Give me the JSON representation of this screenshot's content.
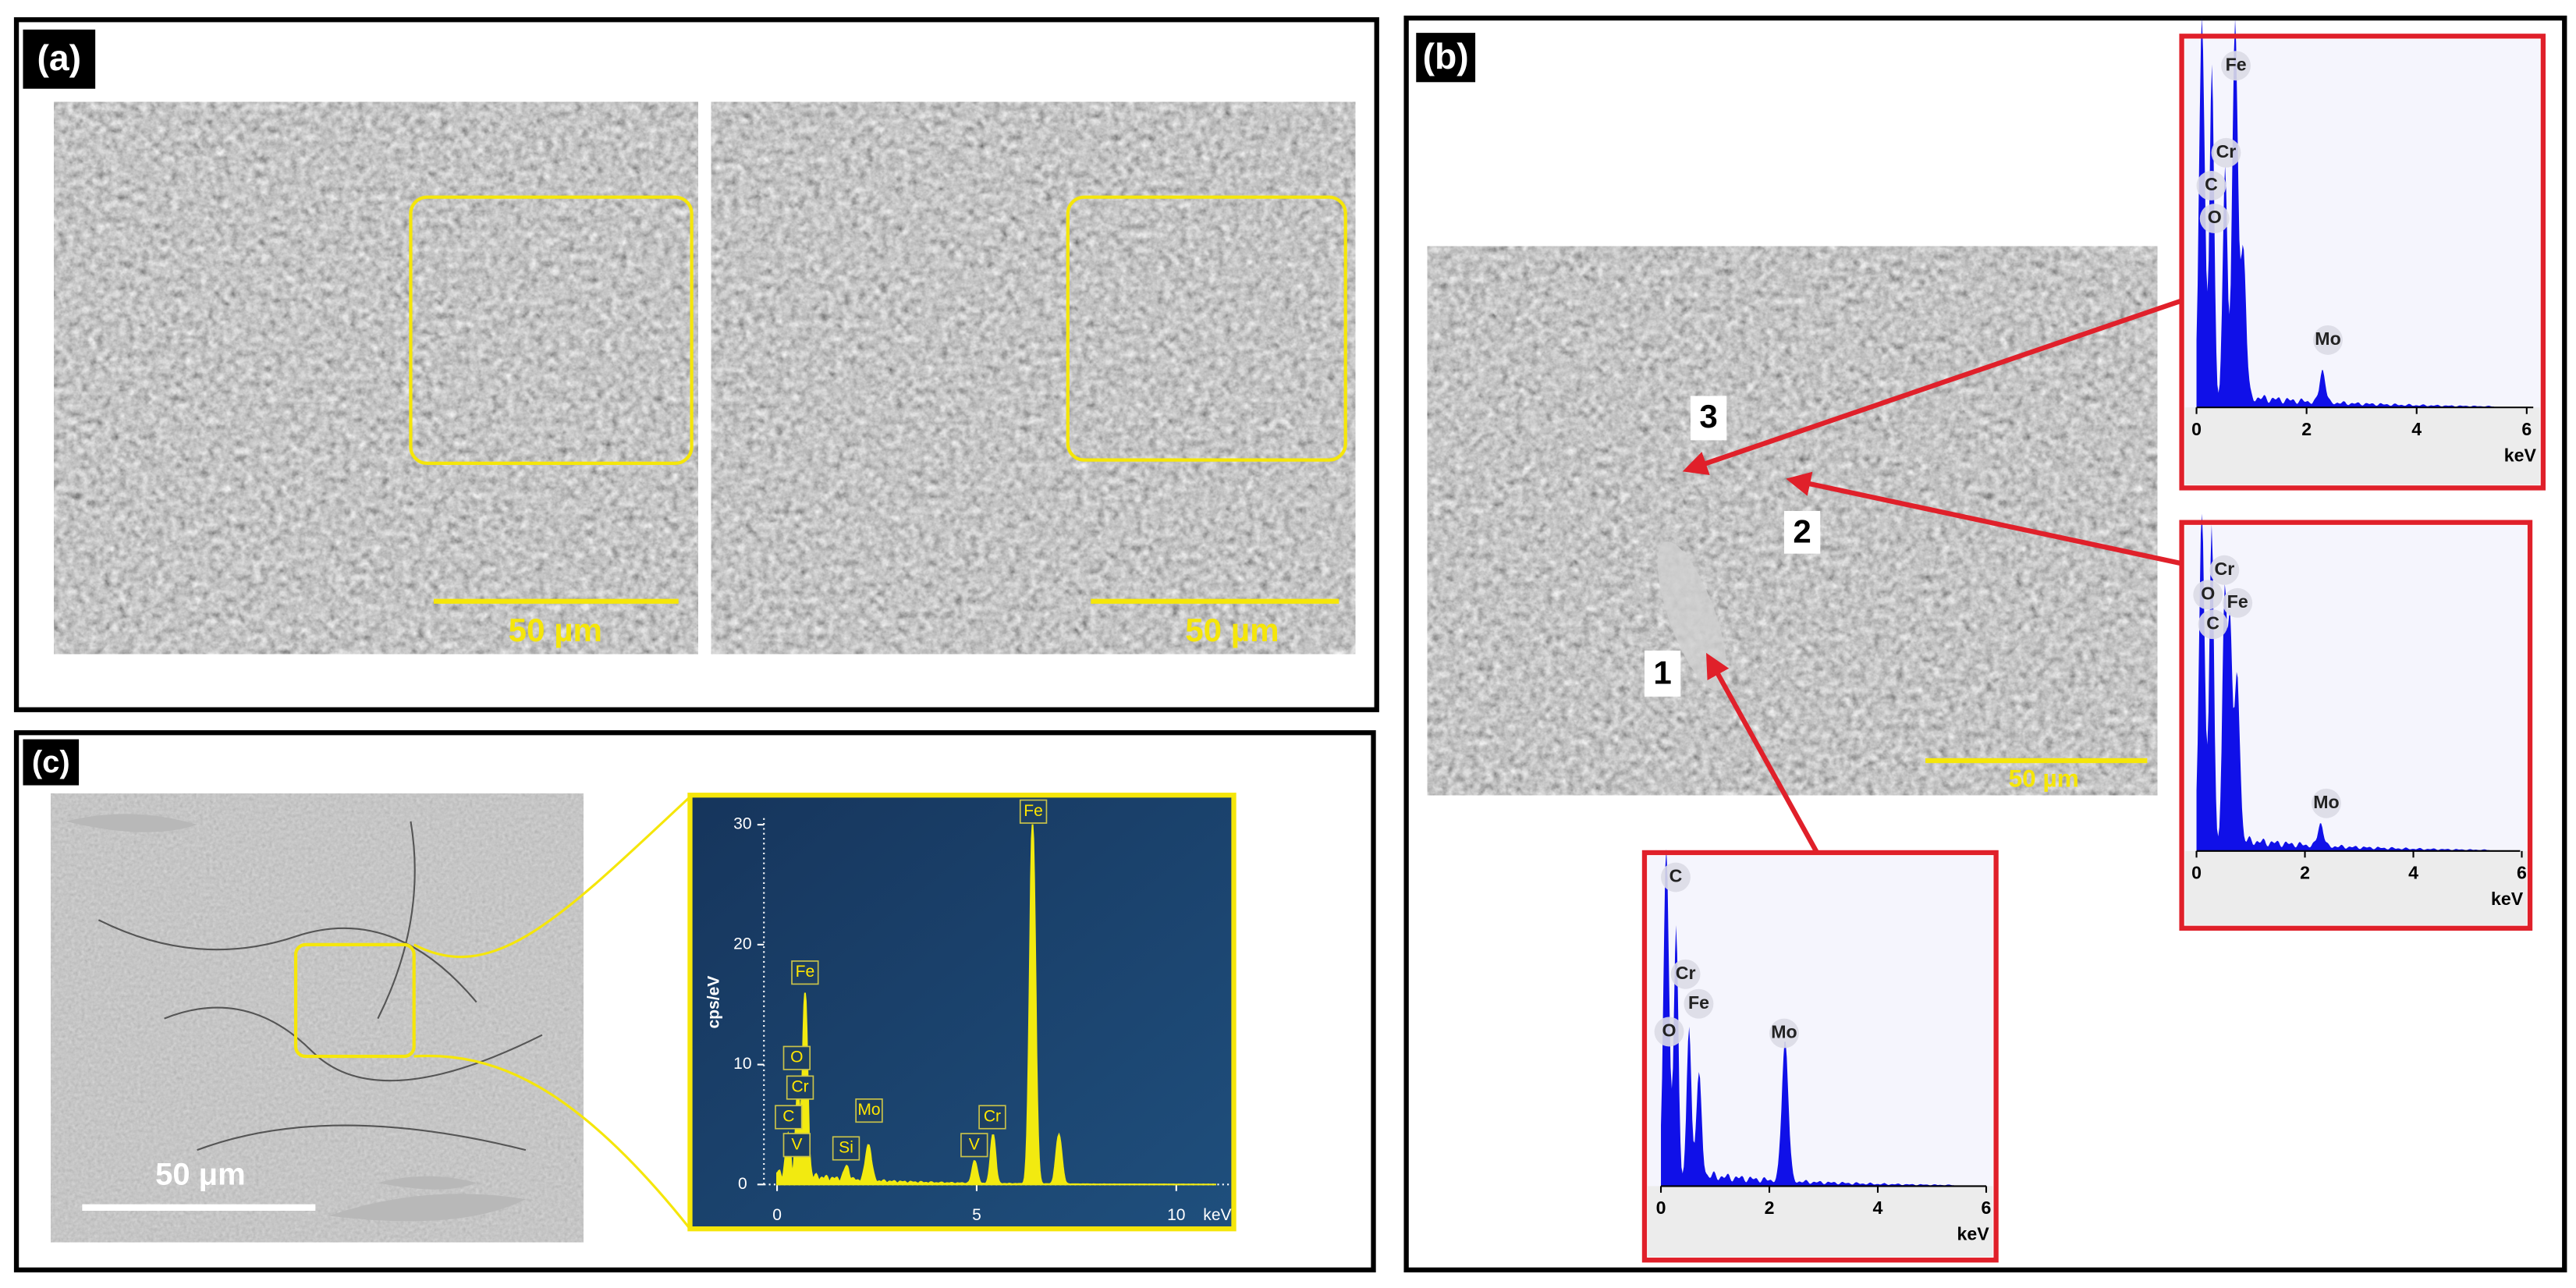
{
  "panel_a": {
    "label": "(a)",
    "scale_bars": [
      "50 µm",
      "50 µm"
    ]
  },
  "panel_b": {
    "label": "(b)",
    "scale_bar": "50 µm",
    "points": [
      "1",
      "2",
      "3"
    ],
    "spectra": [
      {
        "elements": [
          "Fe",
          "Cr",
          "C",
          "O",
          "Mo"
        ],
        "x_ticks": [
          "0",
          "2",
          "4",
          "6"
        ],
        "x_unit": "keV"
      },
      {
        "elements": [
          "Cr",
          "O",
          "Fe",
          "C",
          "Mo"
        ],
        "x_ticks": [
          "0",
          "2",
          "4",
          "6"
        ],
        "x_unit": "keV"
      },
      {
        "elements": [
          "C",
          "Cr",
          "Fe",
          "O",
          "Mo"
        ],
        "x_ticks": [
          "0",
          "2",
          "4",
          "6"
        ],
        "x_unit": "keV"
      }
    ]
  },
  "panel_c": {
    "label": "(c)",
    "scale_bar": "50 μm",
    "spectrum": {
      "elements": [
        "Fe",
        "Fe",
        "O",
        "Cr",
        "C",
        "V",
        "Si",
        "Mo",
        "V",
        "Cr"
      ],
      "y_label": "cps/eV",
      "y_ticks": [
        "0",
        "10",
        "20",
        "30"
      ],
      "x_ticks": [
        "0",
        "5",
        "10"
      ],
      "x_unit": "keV"
    }
  }
}
